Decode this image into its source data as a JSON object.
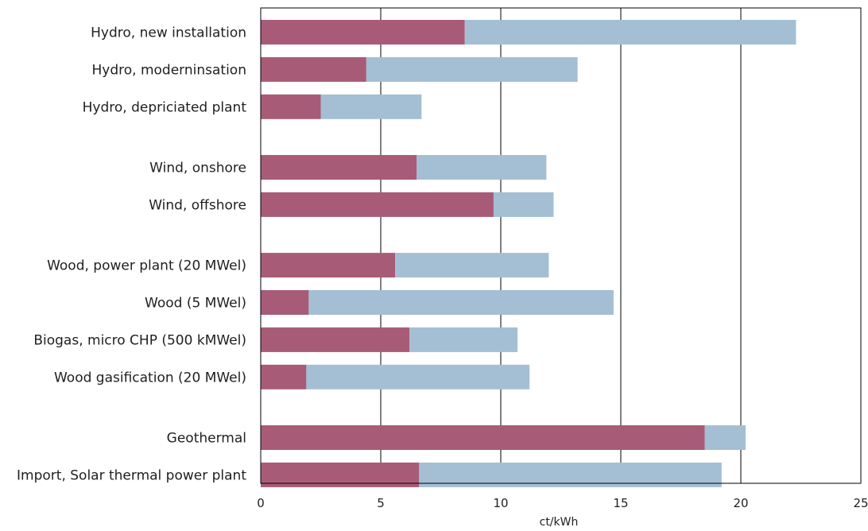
{
  "chart_data": {
    "type": "bar",
    "orientation": "horizontal",
    "stacked": true,
    "xlabel": "ct/kWh",
    "xlim": [
      0,
      25
    ],
    "xticks": [
      0,
      5,
      10,
      15,
      20,
      25
    ],
    "xtick_labels": [
      "0",
      "5",
      "10",
      "15",
      "20",
      "25"
    ],
    "grid": "vertical lines at x ticks",
    "legend": "none",
    "colors": {
      "segment_1": "#a85b77",
      "segment_2": "#a4bfd3",
      "gridline": "#000000",
      "frame": "#000000"
    },
    "groups": [
      {
        "rows": [
          {
            "label": "Hydro, new installation",
            "values": [
              8.5,
              13.8
            ]
          },
          {
            "label": "Hydro, moderninsation",
            "values": [
              4.4,
              8.8
            ]
          },
          {
            "label": "Hydro, depriciated plant",
            "values": [
              2.5,
              4.2
            ]
          }
        ]
      },
      {
        "rows": [
          {
            "label": "Wind, onshore",
            "values": [
              6.5,
              5.4
            ]
          },
          {
            "label": "Wind, offshore",
            "values": [
              9.7,
              2.5
            ]
          }
        ]
      },
      {
        "rows": [
          {
            "label": "Wood, power plant (20 MWel)",
            "values": [
              5.6,
              6.4
            ]
          },
          {
            "label": "Wood (5 MWel)",
            "values": [
              2.0,
              12.7
            ]
          },
          {
            "label": "Biogas, micro CHP (500 kMWel)",
            "values": [
              6.2,
              4.5
            ]
          },
          {
            "label": "Wood gasification (20 MWel)",
            "values": [
              1.9,
              9.3
            ]
          }
        ]
      },
      {
        "rows": [
          {
            "label": "Geothermal",
            "values": [
              18.5,
              1.7
            ]
          },
          {
            "label": "Import, Solar thermal power plant",
            "values": [
              6.6,
              12.6
            ]
          }
        ]
      }
    ]
  }
}
